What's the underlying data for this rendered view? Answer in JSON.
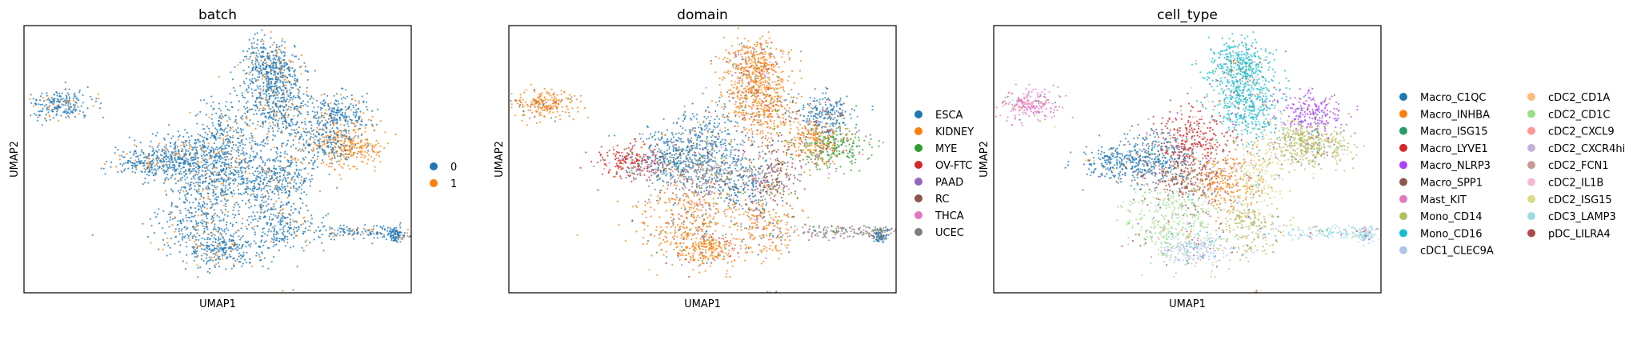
{
  "chart_data": [
    {
      "type": "scatter",
      "title": "batch",
      "xlabel": "UMAP1",
      "ylabel": "UMAP2",
      "grid": false,
      "legend_placement": "right",
      "series": [
        {
          "name": "0",
          "color": "#1f77b4"
        },
        {
          "name": "1",
          "color": "#ff7f0e"
        }
      ]
    },
    {
      "type": "scatter",
      "title": "domain",
      "xlabel": "UMAP1",
      "ylabel": "UMAP2",
      "grid": false,
      "legend_placement": "right",
      "series": [
        {
          "name": "ESCA",
          "color": "#1f77b4"
        },
        {
          "name": "KIDNEY",
          "color": "#ff7f0e"
        },
        {
          "name": "MYE",
          "color": "#2ca02c"
        },
        {
          "name": "OV-FTC",
          "color": "#d62728"
        },
        {
          "name": "PAAD",
          "color": "#9467bd"
        },
        {
          "name": "RC",
          "color": "#8c564b"
        },
        {
          "name": "THCA",
          "color": "#e377c2"
        },
        {
          "name": "UCEC",
          "color": "#7f7f7f"
        }
      ]
    },
    {
      "type": "scatter",
      "title": "cell_type",
      "xlabel": "UMAP1",
      "ylabel": "UMAP2",
      "grid": false,
      "legend_placement": "right",
      "series": [
        {
          "name": "Macro_C1QC",
          "color": "#1f77b4"
        },
        {
          "name": "Macro_INHBA",
          "color": "#ff7f0e"
        },
        {
          "name": "Macro_ISG15",
          "color": "#279e68"
        },
        {
          "name": "Macro_LYVE1",
          "color": "#d62728"
        },
        {
          "name": "Macro_NLRP3",
          "color": "#aa40fc"
        },
        {
          "name": "Macro_SPP1",
          "color": "#8c564b"
        },
        {
          "name": "Mast_KIT",
          "color": "#e377c2"
        },
        {
          "name": "Mono_CD14",
          "color": "#b5bd61"
        },
        {
          "name": "Mono_CD16",
          "color": "#17becf"
        },
        {
          "name": "cDC1_CLEC9A",
          "color": "#aec7e8"
        },
        {
          "name": "cDC2_CD1A",
          "color": "#ffbb78"
        },
        {
          "name": "cDC2_CD1C",
          "color": "#98df8a"
        },
        {
          "name": "cDC2_CXCL9",
          "color": "#ff9896"
        },
        {
          "name": "cDC2_CXCR4hi",
          "color": "#c5b0d5"
        },
        {
          "name": "cDC2_FCN1",
          "color": "#c49c94"
        },
        {
          "name": "cDC2_IL1B",
          "color": "#f7b6d2"
        },
        {
          "name": "cDC2_ISG15",
          "color": "#dbdb8d"
        },
        {
          "name": "cDC3_LAMP3",
          "color": "#9edae5"
        },
        {
          "name": "pDC_LILRA4",
          "color": "#ad494a"
        }
      ]
    }
  ]
}
